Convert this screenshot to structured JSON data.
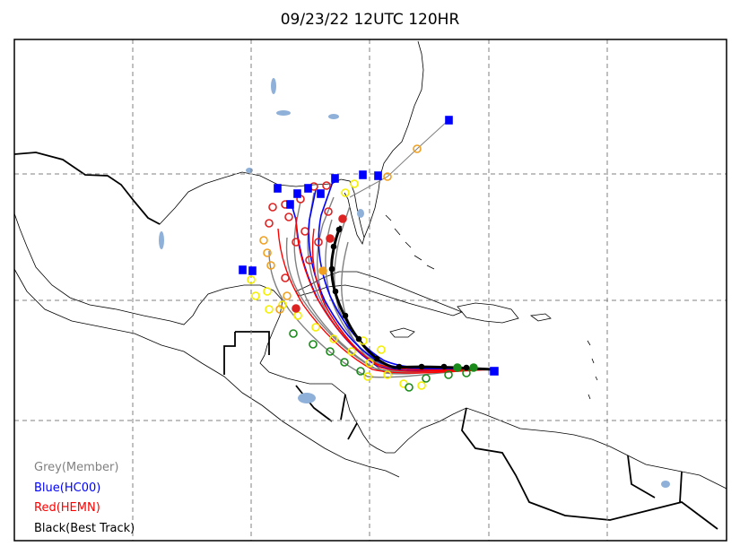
{
  "title": "09/23/22 12UTC 120HR",
  "legend": [
    {
      "label": "Grey(Member)",
      "color": "#808080"
    },
    {
      "label": "Blue(HC00)",
      "color": "#0000ff"
    },
    {
      "label": "Red(HEMN)",
      "color": "#ff0000"
    },
    {
      "label": "Black(Best Track)",
      "color": "#000000"
    }
  ],
  "colors": {
    "member": "#808080",
    "hc00": "#0000ff",
    "hemn": "#ff0000",
    "best_track": "#000000",
    "lakes": "#8fb0d8",
    "grid": "#808080",
    "yellow_marker": "#f5f000",
    "orange_marker": "#f0a020",
    "green_marker": "#1a8a1a"
  }
}
